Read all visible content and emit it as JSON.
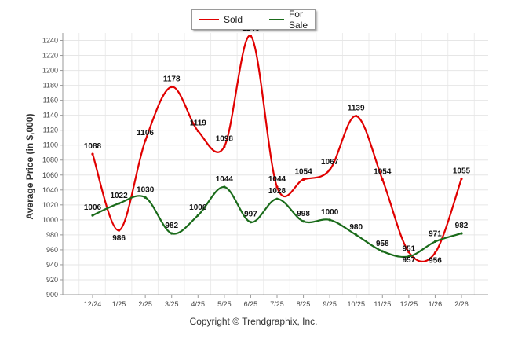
{
  "legend": {
    "sold_label": "Sold",
    "forsale_label": "For Sale"
  },
  "footer": {
    "copyright": "Copyright © Trendgraphix, Inc."
  },
  "chart_data": {
    "type": "line",
    "title": "",
    "xlabel": "",
    "ylabel": "Average Price (in $,000)",
    "categories": [
      "12/24",
      "1/25",
      "2/25",
      "3/25",
      "4/25",
      "5/25",
      "6/25",
      "7/25",
      "8/25",
      "9/25",
      "10/25",
      "11/25",
      "12/25",
      "1/26",
      "2/26"
    ],
    "ylim": [
      900,
      1250
    ],
    "yticks": [
      900,
      920,
      940,
      960,
      980,
      1000,
      1020,
      1040,
      1060,
      1080,
      1100,
      1120,
      1140,
      1160,
      1180,
      1200,
      1220,
      1240
    ],
    "grid": true,
    "legend_position": "top-center",
    "series": [
      {
        "name": "Sold",
        "color": "#e00000",
        "values": [
          1088,
          986,
          1106,
          1178,
          1119,
          1098,
          1246,
          1044,
          1054,
          1067,
          1139,
          1054,
          957,
          956,
          1055
        ]
      },
      {
        "name": "For Sale",
        "color": "#1a6b1a",
        "values": [
          1006,
          1022,
          1030,
          982,
          1006,
          1044,
          997,
          1028,
          998,
          1000,
          980,
          958,
          951,
          971,
          982
        ]
      }
    ]
  }
}
